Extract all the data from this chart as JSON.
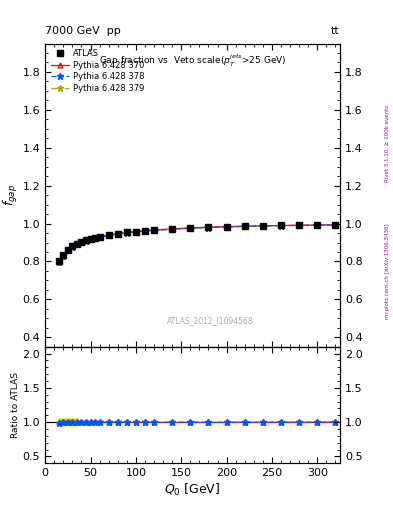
{
  "title_main": "Gap fraction vs  Veto scale($p_T^{jets}$>25 GeV)",
  "header_left": "7000 GeV  pp",
  "header_right": "tt",
  "watermark": "ATLAS_2012_I1094568",
  "right_label": "Rivet 3.1.10, ≥ 100k events",
  "right_label2": "mcplots.cern.ch [arXiv:1306.3436]",
  "xlabel": "$Q_0$ [GeV]",
  "ylabel_main": "$f_{gap}$",
  "ylabel_ratio": "Ratio to ATLAS",
  "xlim": [
    0,
    325
  ],
  "ylim_main": [
    0.35,
    1.95
  ],
  "ylim_ratio": [
    0.4,
    2.1
  ],
  "yticks_main": [
    0.4,
    0.6,
    0.8,
    1.0,
    1.2,
    1.4,
    1.6,
    1.8
  ],
  "yticks_ratio": [
    0.5,
    1.0,
    1.5,
    2.0
  ],
  "Q0_data": [
    15,
    20,
    25,
    30,
    35,
    40,
    45,
    50,
    55,
    60,
    70,
    80,
    90,
    100,
    110,
    120,
    140,
    160,
    180,
    200,
    220,
    240,
    260,
    280,
    300,
    320
  ],
  "fgap_atlas": [
    0.8,
    0.833,
    0.86,
    0.88,
    0.893,
    0.903,
    0.912,
    0.919,
    0.925,
    0.93,
    0.939,
    0.947,
    0.953,
    0.958,
    0.963,
    0.966,
    0.972,
    0.977,
    0.981,
    0.984,
    0.986,
    0.988,
    0.99,
    0.991,
    0.992,
    0.993
  ],
  "fgap_370": [
    0.8,
    0.833,
    0.86,
    0.88,
    0.893,
    0.903,
    0.912,
    0.919,
    0.925,
    0.93,
    0.939,
    0.947,
    0.953,
    0.958,
    0.963,
    0.966,
    0.972,
    0.977,
    0.981,
    0.984,
    0.986,
    0.988,
    0.99,
    0.991,
    0.992,
    0.993
  ],
  "fgap_378": [
    0.796,
    0.831,
    0.858,
    0.878,
    0.891,
    0.901,
    0.91,
    0.917,
    0.923,
    0.928,
    0.937,
    0.945,
    0.951,
    0.956,
    0.961,
    0.964,
    0.97,
    0.975,
    0.979,
    0.982,
    0.985,
    0.987,
    0.989,
    0.99,
    0.992,
    0.993
  ],
  "fgap_379": [
    0.796,
    0.831,
    0.858,
    0.878,
    0.891,
    0.901,
    0.91,
    0.917,
    0.923,
    0.928,
    0.937,
    0.945,
    0.951,
    0.956,
    0.961,
    0.964,
    0.97,
    0.975,
    0.979,
    0.982,
    0.985,
    0.987,
    0.989,
    0.99,
    0.992,
    0.993
  ],
  "atlas_err_low": [
    0.02,
    0.018,
    0.016,
    0.015,
    0.014,
    0.013,
    0.012,
    0.011,
    0.01,
    0.01,
    0.009,
    0.008,
    0.008,
    0.007,
    0.007,
    0.006,
    0.006,
    0.005,
    0.005,
    0.005,
    0.004,
    0.004,
    0.004,
    0.004,
    0.003,
    0.003
  ],
  "atlas_err_high": [
    0.02,
    0.018,
    0.016,
    0.015,
    0.014,
    0.013,
    0.012,
    0.011,
    0.01,
    0.01,
    0.009,
    0.008,
    0.008,
    0.007,
    0.007,
    0.006,
    0.006,
    0.005,
    0.005,
    0.005,
    0.004,
    0.004,
    0.004,
    0.004,
    0.003,
    0.003
  ],
  "color_atlas": "#000000",
  "color_370": "#ff0000",
  "color_378": "#0055ff",
  "color_379": "#aaaa00",
  "bg_color": "#ffffff",
  "ratio_370": [
    1.0,
    1.0,
    1.0,
    1.0,
    1.0,
    1.0,
    1.0,
    1.0,
    1.0,
    1.0,
    1.0,
    1.0,
    1.0,
    1.0,
    1.0,
    1.0,
    1.0,
    1.0,
    1.0,
    1.0,
    1.0,
    1.0,
    1.0,
    1.0,
    1.0,
    1.0
  ],
  "ratio_378": [
    0.995,
    0.998,
    0.998,
    0.998,
    0.998,
    0.998,
    0.998,
    0.998,
    0.998,
    0.998,
    0.998,
    0.998,
    0.998,
    0.998,
    0.998,
    0.998,
    0.998,
    0.998,
    0.998,
    0.998,
    0.999,
    0.999,
    0.999,
    0.999,
    1.0,
    1.0
  ],
  "ratio_379": [
    0.995,
    0.998,
    0.998,
    0.998,
    0.998,
    0.998,
    0.998,
    0.998,
    0.998,
    0.998,
    0.998,
    0.998,
    0.998,
    0.998,
    0.998,
    0.998,
    0.998,
    0.998,
    0.998,
    0.998,
    0.999,
    0.999,
    0.999,
    0.999,
    1.0,
    1.0
  ]
}
